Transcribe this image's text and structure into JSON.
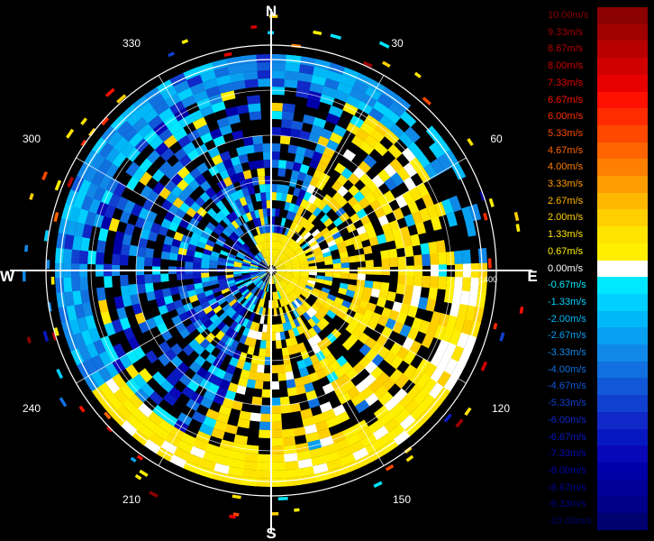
{
  "compass": {
    "north": "N",
    "south": "S",
    "east": "E",
    "west": "W"
  },
  "bearings": [
    "30",
    "60",
    "120",
    "150",
    "210",
    "240",
    "300",
    "330"
  ],
  "range_labels": [
    "1400"
  ],
  "legend": {
    "entries": [
      {
        "label": "10.00m/s",
        "color": "#8b0000"
      },
      {
        "label": "9.33m/s",
        "color": "#a00000"
      },
      {
        "label": "8.67m/s",
        "color": "#b80000"
      },
      {
        "label": "8.00m/s",
        "color": "#d00000"
      },
      {
        "label": "7.33m/s",
        "color": "#e80000"
      },
      {
        "label": "6.67m/s",
        "color": "#ff1000"
      },
      {
        "label": "6.00m/s",
        "color": "#ff2c00"
      },
      {
        "label": "5.33m/s",
        "color": "#ff4800"
      },
      {
        "label": "4.67m/s",
        "color": "#ff6400"
      },
      {
        "label": "4.00m/s",
        "color": "#ff8000"
      },
      {
        "label": "3.33m/s",
        "color": "#ff9c00"
      },
      {
        "label": "2.67m/s",
        "color": "#ffb800"
      },
      {
        "label": "2.00m/s",
        "color": "#ffd000"
      },
      {
        "label": "1.33m/s",
        "color": "#ffe400"
      },
      {
        "label": "0.67m/s",
        "color": "#fff000"
      },
      {
        "label": "0.00m/s",
        "color": "#ffffff"
      },
      {
        "label": "-0.67m/s",
        "color": "#00e8ff"
      },
      {
        "label": "-1.33m/s",
        "color": "#00d0ff"
      },
      {
        "label": "-2.00m/s",
        "color": "#00b8f8"
      },
      {
        "label": "-2.67m/s",
        "color": "#08a0f0"
      },
      {
        "label": "-3.33m/s",
        "color": "#1088e8"
      },
      {
        "label": "-4.00m/s",
        "color": "#1070e0"
      },
      {
        "label": "-4.67m/s",
        "color": "#1058d8"
      },
      {
        "label": "-5.33m/s",
        "color": "#1040d0"
      },
      {
        "label": "-6.00m/s",
        "color": "#1028c8"
      },
      {
        "label": "-6.67m/s",
        "color": "#0818c0"
      },
      {
        "label": "-7.33m/s",
        "color": "#0808b8"
      },
      {
        "label": "-8.00m/s",
        "color": "#0000a8"
      },
      {
        "label": "-8.67m/s",
        "color": "#000098"
      },
      {
        "label": "-9.33m/s",
        "color": "#000088"
      },
      {
        "label": "-10.00m/s",
        "color": "#000070"
      }
    ]
  }
}
